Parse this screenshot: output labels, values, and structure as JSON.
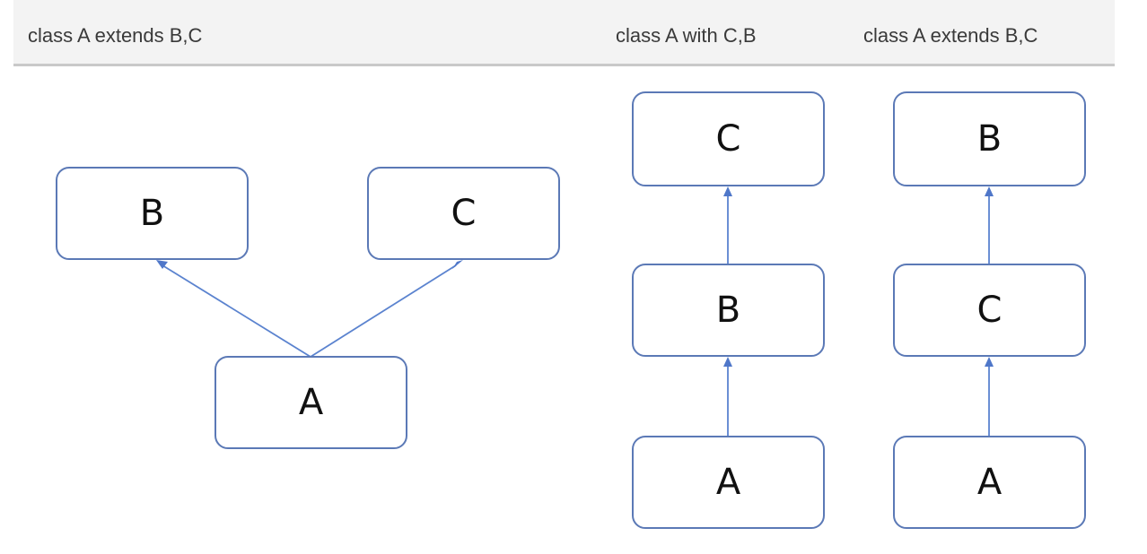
{
  "header": {
    "col1": "class A extends B,C",
    "col2": "class A with C,B",
    "col3": "class A extends B,C"
  },
  "diagram1": {
    "top_left": "B",
    "top_right": "C",
    "bottom": "A"
  },
  "diagram2": {
    "top": "C",
    "middle": "B",
    "bottom": "A"
  },
  "diagram3": {
    "top": "B",
    "middle": "C",
    "bottom": "A"
  },
  "colors": {
    "node_border": "#5b79b6",
    "edge": "#5b83cf",
    "header_bg": "#f3f3f3"
  }
}
